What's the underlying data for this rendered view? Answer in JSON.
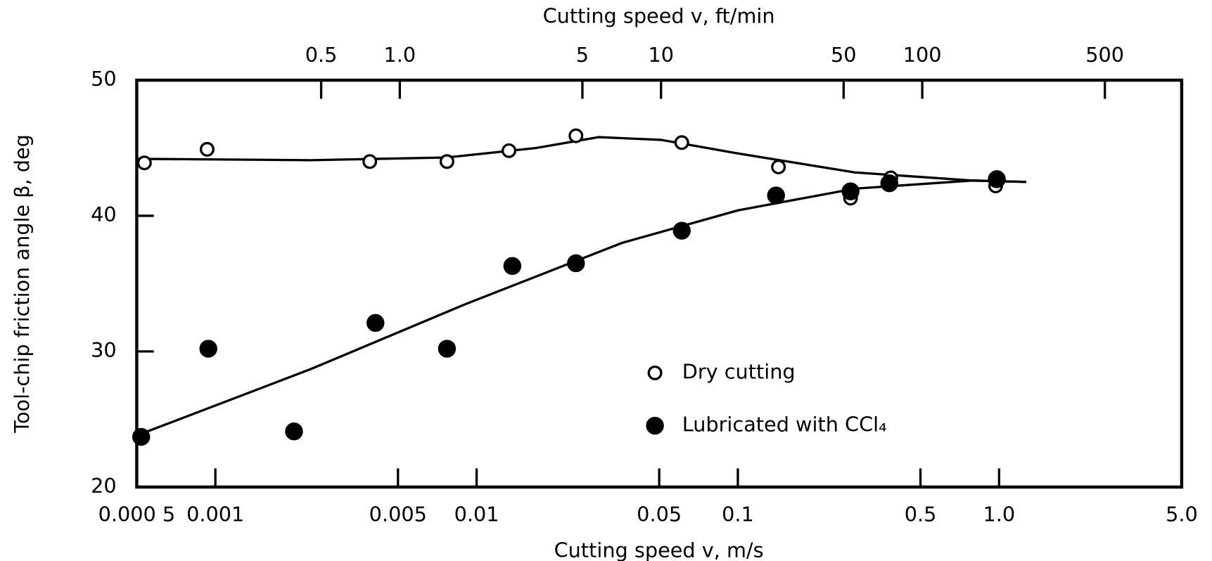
{
  "chart_data": {
    "type": "scatter",
    "xlabel": "Cutting speed v, m/s",
    "x2label": "Cutting speed v, ft/min",
    "ylabel": "Tool-chip friction angle β, deg",
    "xscale": "log",
    "xlim": [
      0.0005,
      5.0
    ],
    "xticks": [
      {
        "value": 0.0005,
        "label": "0.000 5"
      },
      0.001,
      0.005,
      0.01,
      0.05,
      0.1,
      0.5,
      {
        "value": 1.0,
        "label": "1.0"
      },
      {
        "value": 5.0,
        "label": "5.0"
      }
    ],
    "x2lim": [
      0.0984,
      984.25
    ],
    "x2ticks": [
      0.5,
      {
        "value": 1.0,
        "label": "1.0"
      },
      5,
      10,
      50,
      100,
      500
    ],
    "ylim": [
      20,
      50
    ],
    "yticks": [
      20,
      30,
      40,
      50
    ],
    "legend": "lower right",
    "series": [
      {
        "name": "Dry cutting",
        "color": "#000000",
        "marker": "open",
        "x": [
          0.000535,
          0.00093,
          0.0039,
          0.0077,
          0.0133,
          0.024,
          0.061,
          0.143,
          0.27,
          0.385,
          0.97
        ],
        "values": [
          43.9,
          44.9,
          44.0,
          44.0,
          44.8,
          45.9,
          45.4,
          43.6,
          41.3,
          42.8,
          42.2
        ],
        "fit_x": [
          0.0005,
          0.00232,
          0.0077,
          0.0169,
          0.0293,
          0.0507,
          0.1,
          0.28,
          0.79,
          1.27
        ],
        "fit_y": [
          44.2,
          44.1,
          44.3,
          45.0,
          45.8,
          45.6,
          44.6,
          43.2,
          42.6,
          42.5
        ]
      },
      {
        "name": "Lubricated with CCl₄",
        "color": "#000000",
        "marker": "filled",
        "x": [
          0.00052,
          0.00094,
          0.002,
          0.0041,
          0.0077,
          0.0137,
          0.024,
          0.061,
          0.14,
          0.27,
          0.38,
          0.98
        ],
        "values": [
          23.7,
          30.2,
          24.1,
          32.1,
          30.2,
          36.3,
          36.5,
          38.9,
          41.5,
          41.8,
          42.4,
          42.7
        ],
        "fit_x": [
          0.0005,
          0.00232,
          0.0091,
          0.036,
          0.1,
          0.28,
          0.79,
          1.27
        ],
        "fit_y": [
          23.8,
          28.7,
          33.5,
          38.0,
          40.4,
          42.0,
          42.6,
          42.5
        ]
      }
    ]
  }
}
